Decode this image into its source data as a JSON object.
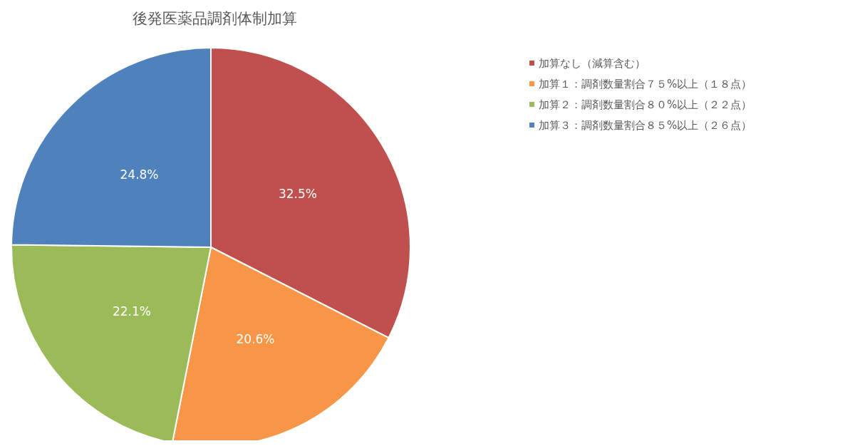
{
  "chart_data": {
    "type": "pie",
    "title": "後発医薬品調剤体制加算",
    "categories": [
      "加算なし（減算含む）",
      "加算１：調剤数量割合７５%以上（１８点）",
      "加算２：調剤数量割合８０%以上（２２点）",
      "加算３：調剤数量割合８５%以上（２６点）"
    ],
    "values": [
      32.5,
      20.6,
      22.1,
      24.8
    ],
    "colors": [
      "#c0504d",
      "#f79646",
      "#9bbb59",
      "#4f81bd"
    ],
    "value_labels": [
      "32.5%",
      "20.6%",
      "22.1%",
      "24.8%"
    ],
    "legend": "top right"
  }
}
